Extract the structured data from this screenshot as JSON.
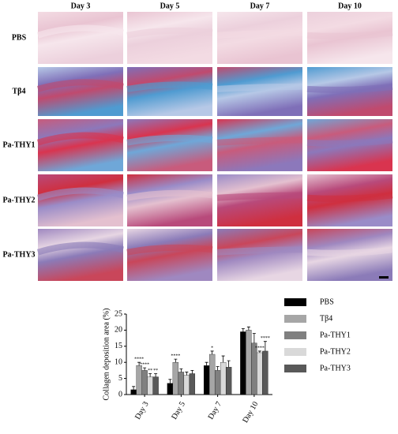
{
  "image_panel": {
    "columns": [
      "Day 3",
      "Day 5",
      "Day 7",
      "Day 10"
    ],
    "rows": [
      "PBS",
      "Tβ4",
      "Pa-THY1",
      "Pa-THY2",
      "Pa-THY3"
    ]
  },
  "chart_data": {
    "type": "bar",
    "y_label": "Collagen deposition area (%)",
    "categories": [
      "Day 3",
      "Day 5",
      "Day 7",
      "Day 10"
    ],
    "series": [
      {
        "name": "PBS",
        "color": "#000000",
        "values": [
          1.5,
          3.5,
          9,
          19.5
        ],
        "errors": [
          1,
          1.2,
          1,
          1
        ],
        "annotations": [
          null,
          null,
          null,
          null
        ]
      },
      {
        "name": "Tβ4",
        "color": "#a6a6a6",
        "values": [
          9,
          10,
          12.5,
          20
        ],
        "errors": [
          1,
          1,
          1,
          1
        ],
        "annotations": [
          "****",
          "****",
          "*",
          null
        ]
      },
      {
        "name": "Pa-THY1",
        "color": "#808080",
        "values": [
          7.5,
          7,
          7.5,
          16
        ],
        "errors": [
          0.8,
          1,
          1.2,
          3
        ],
        "annotations": [
          "****",
          null,
          null,
          null
        ]
      },
      {
        "name": "Pa-THY2",
        "color": "#d9d9d9",
        "values": [
          5.5,
          6,
          10,
          13
        ],
        "errors": [
          1,
          1,
          2,
          0.5
        ],
        "annotations": [
          "**",
          null,
          null,
          "****"
        ]
      },
      {
        "name": "Pa-THY3",
        "color": "#595959",
        "values": [
          5.5,
          6.5,
          8.5,
          13.5
        ],
        "errors": [
          1,
          1,
          2,
          3
        ],
        "annotations": [
          "**",
          null,
          null,
          "****"
        ]
      }
    ],
    "ylim": [
      0,
      25
    ],
    "yticks": [
      0,
      5,
      10,
      15,
      20,
      25
    ],
    "grid": false,
    "legend": "right"
  }
}
